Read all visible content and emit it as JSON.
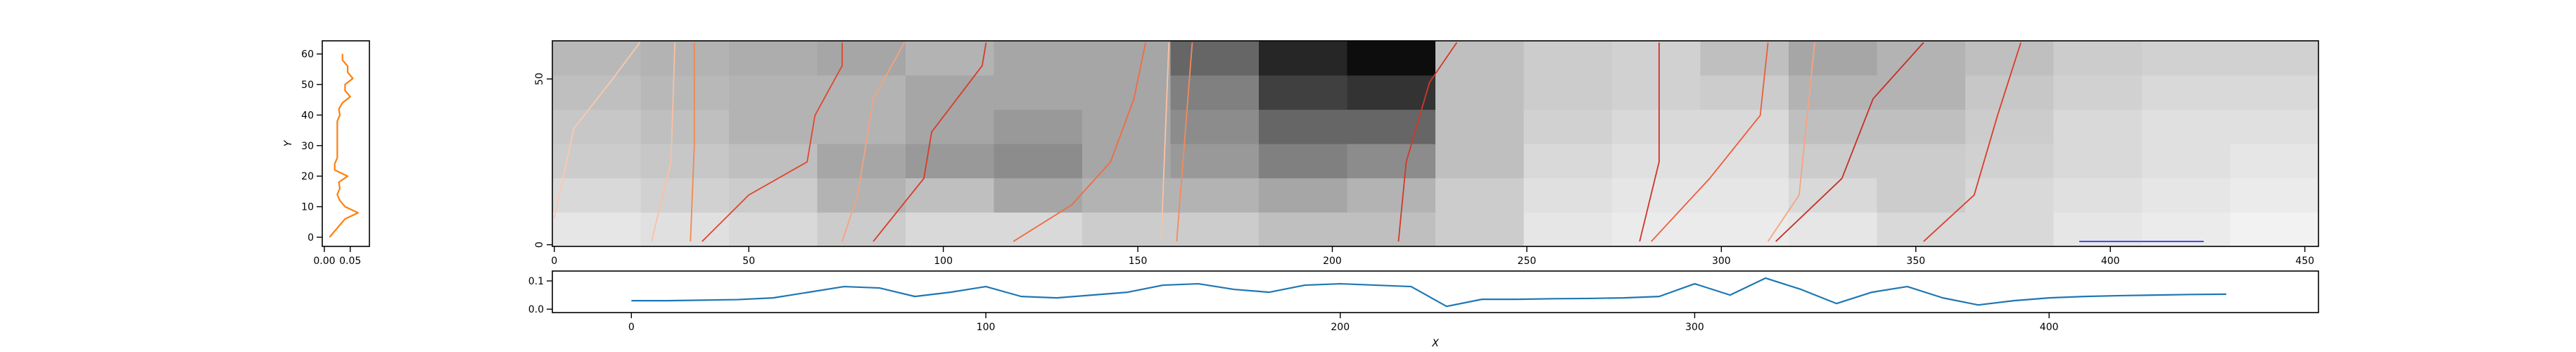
{
  "chart_data": [
    {
      "type": "heatmap",
      "xlim": [
        -0.5,
        453.5
      ],
      "ylim": [
        -0.5,
        61.5
      ],
      "xticks": [
        0,
        50,
        100,
        150,
        200,
        250,
        300,
        350,
        400,
        450
      ],
      "yticks": [
        0,
        50
      ],
      "values": [
        [
          0.1,
          0.12,
          0.15,
          0.2,
          0.15,
          0.15,
          0.2,
          0.2,
          0.25,
          0.25,
          0.2,
          0.1,
          0.08,
          0.08,
          0.1,
          0.15,
          0.15,
          0.1,
          0.08,
          0.05
        ],
        [
          0.15,
          0.18,
          0.2,
          0.3,
          0.25,
          0.35,
          0.3,
          0.3,
          0.35,
          0.3,
          0.2,
          0.12,
          0.1,
          0.1,
          0.15,
          0.2,
          0.15,
          0.12,
          0.1,
          0.08
        ],
        [
          0.2,
          0.22,
          0.25,
          0.35,
          0.4,
          0.45,
          0.35,
          0.4,
          0.5,
          0.45,
          0.25,
          0.15,
          0.12,
          0.12,
          0.2,
          0.2,
          0.18,
          0.15,
          0.12,
          0.1
        ],
        [
          0.22,
          0.25,
          0.3,
          0.3,
          0.35,
          0.4,
          0.35,
          0.45,
          0.6,
          0.6,
          0.25,
          0.18,
          0.15,
          0.15,
          0.25,
          0.25,
          0.2,
          0.15,
          0.12,
          0.12
        ],
        [
          0.25,
          0.28,
          0.3,
          0.3,
          0.35,
          0.35,
          0.35,
          0.5,
          0.75,
          0.8,
          0.25,
          0.2,
          0.18,
          0.2,
          0.3,
          0.3,
          0.22,
          0.18,
          0.15,
          0.15
        ],
        [
          0.28,
          0.3,
          0.32,
          0.35,
          0.3,
          0.35,
          0.35,
          0.6,
          0.85,
          0.95,
          0.25,
          0.2,
          0.18,
          0.25,
          0.35,
          0.3,
          0.25,
          0.2,
          0.18,
          0.18
        ]
      ],
      "series": [
        {
          "color": "#fbc9ad",
          "x": [
            0,
            5,
            15,
            22
          ],
          "y": [
            8,
            35,
            50,
            61
          ]
        },
        {
          "color": "#fcc0a0",
          "x": [
            25,
            30,
            31
          ],
          "y": [
            1,
            25,
            61
          ]
        },
        {
          "color": "#f4874f",
          "x": [
            35,
            36,
            36
          ],
          "y": [
            1,
            30,
            61
          ]
        },
        {
          "color": "#e2452b",
          "x": [
            38,
            50,
            65,
            67,
            74,
            74
          ],
          "y": [
            1,
            15,
            25,
            39,
            54,
            61
          ]
        },
        {
          "color": "#f7a27d",
          "x": [
            74,
            78,
            82,
            90
          ],
          "y": [
            1,
            15,
            44,
            61
          ]
        },
        {
          "color": "#d93a29",
          "x": [
            82,
            95,
            97,
            110,
            111
          ],
          "y": [
            1,
            20,
            34,
            54,
            61
          ]
        },
        {
          "color": "#f26b40",
          "x": [
            118,
            133,
            143,
            149,
            152
          ],
          "y": [
            1,
            12,
            25,
            44,
            61
          ]
        },
        {
          "color": "#fcc2a3",
          "x": [
            156,
            158
          ],
          "y": [
            1,
            61
          ]
        },
        {
          "color": "#f58a58",
          "x": [
            160,
            164
          ],
          "y": [
            1,
            61
          ]
        },
        {
          "color": "#d53629",
          "x": [
            217,
            219,
            225,
            232
          ],
          "y": [
            1,
            25,
            49,
            61
          ]
        },
        {
          "color": "#cf3327",
          "x": [
            279,
            284,
            284
          ],
          "y": [
            1,
            25,
            61
          ]
        },
        {
          "color": "#ee5b3a",
          "x": [
            282,
            297,
            310,
            312
          ],
          "y": [
            1,
            20,
            39,
            61
          ]
        },
        {
          "color": "#f8a37f",
          "x": [
            312,
            320,
            324
          ],
          "y": [
            1,
            15,
            61
          ]
        },
        {
          "color": "#c62e26",
          "x": [
            314,
            331,
            339,
            352
          ],
          "y": [
            1,
            20,
            44,
            61
          ]
        },
        {
          "color": "#db3c2a",
          "x": [
            352,
            365,
            371,
            377
          ],
          "y": [
            1,
            15,
            39,
            61
          ]
        },
        {
          "color": "#3f3fff",
          "x": [
            392,
            424
          ],
          "y": [
            1,
            1
          ]
        }
      ]
    },
    {
      "type": "line",
      "xlabel": "X",
      "xlim": [
        -22.3,
        476
      ],
      "ylim": [
        -0.012,
        0.135
      ],
      "xticks": [
        0,
        100,
        200,
        300,
        400
      ],
      "yticks": [
        {
          "value": 0,
          "label": "0.0"
        },
        0.1
      ],
      "series": [
        {
          "color": "#1f77b4",
          "x": [
            0,
            10,
            20,
            30,
            40,
            50,
            60,
            70,
            80,
            90,
            100,
            110,
            120,
            130,
            140,
            150,
            160,
            170,
            180,
            190,
            200,
            210,
            220,
            230,
            240,
            250,
            260,
            270,
            280,
            290,
            300,
            310,
            320,
            330,
            340,
            350,
            360,
            370,
            380,
            390,
            400,
            410,
            420,
            430,
            440,
            450
          ],
          "y": [
            0.03,
            0.03,
            0.032,
            0.034,
            0.04,
            0.06,
            0.08,
            0.075,
            0.045,
            0.06,
            0.08,
            0.045,
            0.04,
            0.05,
            0.06,
            0.085,
            0.09,
            0.07,
            0.06,
            0.085,
            0.09,
            0.085,
            0.08,
            0.01,
            0.035,
            0.035,
            0.037,
            0.038,
            0.04,
            0.045,
            0.09,
            0.05,
            0.11,
            0.07,
            0.02,
            0.06,
            0.08,
            0.04,
            0.015,
            0.03,
            0.04,
            0.045,
            0.048,
            0.05,
            0.052,
            0.053
          ]
        }
      ]
    },
    {
      "type": "line",
      "ylabel": "Y",
      "xlim": [
        -0.004,
        0.087
      ],
      "ylim": [
        -3,
        64.3
      ],
      "xticks": [
        {
          "value": 0,
          "label": "0.00"
        },
        {
          "value": 0.05,
          "label": "0.05"
        }
      ],
      "yticks": [
        0,
        10,
        20,
        30,
        40,
        50,
        60
      ],
      "series": [
        {
          "color": "#ff7f0e",
          "x": [
            0.01,
            0.02,
            0.03,
            0.04,
            0.065,
            0.04,
            0.03,
            0.025,
            0.03,
            0.028,
            0.045,
            0.02,
            0.02,
            0.025,
            0.025,
            0.025,
            0.025,
            0.025,
            0.025,
            0.025,
            0.03,
            0.028,
            0.035,
            0.05,
            0.04,
            0.04,
            0.055,
            0.045,
            0.045,
            0.035,
            0.035
          ],
          "y": [
            0,
            2,
            4,
            6,
            8,
            10,
            12,
            14,
            16,
            18,
            20,
            22,
            24,
            26,
            28,
            30,
            32,
            34,
            36,
            38,
            40,
            42,
            44,
            46,
            48,
            50,
            52,
            54,
            56,
            58,
            60
          ]
        }
      ]
    }
  ]
}
